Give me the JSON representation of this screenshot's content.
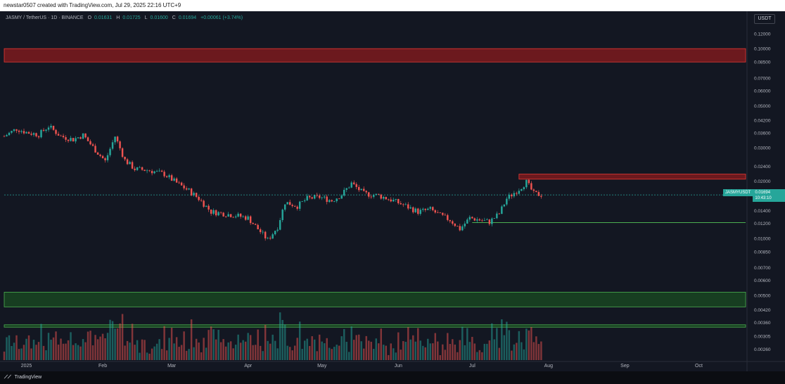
{
  "header": {
    "attribution": "newstar0507 created with TradingView.com, Jul 29, 2025 22:16 UTC+9"
  },
  "legend": {
    "symbol": "JASMY / TetherUS · 1D · BINANCE",
    "open_label": "O",
    "open": "0.01631",
    "high_label": "H",
    "high": "0.01725",
    "low_label": "L",
    "low": "0.01600",
    "close_label": "C",
    "close": "0.01694",
    "change": "+0.00061 (+3.74%)"
  },
  "axis": {
    "currency": "USDT"
  },
  "price_tag": {
    "symbol": "JASMYUSDT",
    "price": "0.01694",
    "countdown": "10:43:10"
  },
  "footer": {
    "brand": "TradingView"
  },
  "colors": {
    "up": "#26a69a",
    "down": "#ef5350",
    "resistance_zone": "#b71c1c",
    "support_zone": "#1b5e20",
    "background": "#131722"
  },
  "chart_data": {
    "type": "candlestick",
    "y_scale": "log",
    "y_ticks": [
      "0.12000",
      "0.10000",
      "0.08500",
      "0.07000",
      "0.06000",
      "0.05000",
      "0.04200",
      "0.03600",
      "0.03000",
      "0.02400",
      "0.02000",
      "0.01400",
      "0.01200",
      "0.01000",
      "0.00850",
      "0.00700",
      "0.00600",
      "0.00500",
      "0.00420",
      "0.00360",
      "0.00305",
      "0.00260"
    ],
    "x_ticks": [
      "2025",
      "Feb",
      "Mar",
      "Apr",
      "May",
      "Jun",
      "Jul",
      "Aug",
      "Sep",
      "Oct"
    ],
    "x_range": [
      "2024-12-23",
      "2025-10-20"
    ],
    "y_range": [
      0.0024,
      0.135
    ],
    "last_price": 0.01694,
    "zones": [
      {
        "kind": "resistance",
        "from": 0.085,
        "to": 0.1
      },
      {
        "kind": "resistance",
        "from": 0.0205,
        "to": 0.0218,
        "start": "2025-07-20"
      },
      {
        "kind": "support",
        "from": 0.00435,
        "to": 0.0052
      },
      {
        "kind": "support",
        "from": 0.0034,
        "to": 0.0035
      }
    ],
    "lines": [
      {
        "kind": "support",
        "price": 0.0121,
        "start": "2025-07-01"
      }
    ],
    "ohlc_path": [
      [
        "2024-12-23",
        0.0345
      ],
      [
        "2024-12-28",
        0.0378
      ],
      [
        "2025-01-01",
        0.0362
      ],
      [
        "2025-01-06",
        0.0352
      ],
      [
        "2025-01-10",
        0.039
      ],
      [
        "2025-01-15",
        0.0345
      ],
      [
        "2025-01-20",
        0.0332
      ],
      [
        "2025-01-24",
        0.035
      ],
      [
        "2025-01-29",
        0.0292
      ],
      [
        "2025-02-02",
        0.0255
      ],
      [
        "2025-02-06",
        0.0345
      ],
      [
        "2025-02-10",
        0.0258
      ],
      [
        "2025-02-14",
        0.0232
      ],
      [
        "2025-02-20",
        0.0228
      ],
      [
        "2025-02-26",
        0.0218
      ],
      [
        "2025-03-03",
        0.0196
      ],
      [
        "2025-03-08",
        0.0178
      ],
      [
        "2025-03-12",
        0.0162
      ],
      [
        "2025-03-17",
        0.0138
      ],
      [
        "2025-03-22",
        0.0135
      ],
      [
        "2025-03-27",
        0.0132
      ],
      [
        "2025-04-01",
        0.0128
      ],
      [
        "2025-04-05",
        0.0112
      ],
      [
        "2025-04-09",
        0.0098
      ],
      [
        "2025-04-13",
        0.0115
      ],
      [
        "2025-04-16",
        0.0155
      ],
      [
        "2025-04-21",
        0.0148
      ],
      [
        "2025-04-25",
        0.0162
      ],
      [
        "2025-04-30",
        0.0165
      ],
      [
        "2025-05-05",
        0.0158
      ],
      [
        "2025-05-09",
        0.017
      ],
      [
        "2025-05-13",
        0.0195
      ],
      [
        "2025-05-18",
        0.0172
      ],
      [
        "2025-05-24",
        0.0168
      ],
      [
        "2025-05-30",
        0.0158
      ],
      [
        "2025-06-04",
        0.0148
      ],
      [
        "2025-06-09",
        0.0138
      ],
      [
        "2025-06-14",
        0.0142
      ],
      [
        "2025-06-18",
        0.0132
      ],
      [
        "2025-06-22",
        0.0125
      ],
      [
        "2025-06-26",
        0.0112
      ],
      [
        "2025-06-30",
        0.0128
      ],
      [
        "2025-07-04",
        0.0125
      ],
      [
        "2025-07-08",
        0.0122
      ],
      [
        "2025-07-12",
        0.0135
      ],
      [
        "2025-07-15",
        0.0162
      ],
      [
        "2025-07-20",
        0.0182
      ],
      [
        "2025-07-23",
        0.0198
      ],
      [
        "2025-07-26",
        0.0172
      ],
      [
        "2025-07-29",
        0.01694
      ]
    ],
    "volume_range": [
      0,
      12
    ]
  }
}
